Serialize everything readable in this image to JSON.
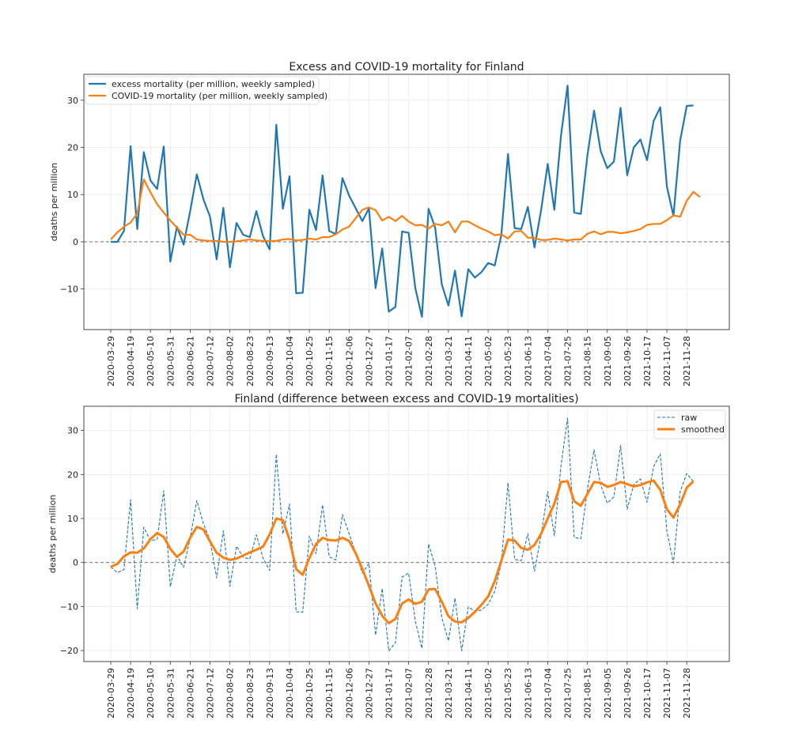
{
  "chart_data": [
    {
      "type": "line",
      "title": "Excess and COVID-19 mortality for Finland",
      "xlabel": "",
      "ylabel": "deaths per million",
      "ylim": [
        -18.6,
        35.5
      ],
      "yticks": [
        -10,
        0,
        10,
        20,
        30
      ],
      "ytick_labels": [
        "−10",
        "0",
        "10",
        "20",
        "30"
      ],
      "grid": true,
      "legend_position": "top-left",
      "reference_line": 0,
      "x_start": "2020-03-29",
      "x_step_weeks": 1,
      "xtick_every": 3,
      "xtick_labels": [
        "2020-03-29",
        "2020-04-19",
        "2020-05-10",
        "2020-05-31",
        "2020-06-21",
        "2020-07-12",
        "2020-08-02",
        "2020-08-23",
        "2020-09-13",
        "2020-10-04",
        "2020-10-25",
        "2020-11-15",
        "2020-12-06",
        "2020-12-27",
        "2021-01-17",
        "2021-02-07",
        "2021-02-28",
        "2021-03-21",
        "2021-04-11",
        "2021-05-02",
        "2021-05-23",
        "2021-06-13",
        "2021-07-04",
        "2021-07-25",
        "2021-08-15",
        "2021-09-05",
        "2021-09-26",
        "2021-10-17",
        "2021-11-07",
        "2021-11-28"
      ],
      "series": [
        {
          "name": "excess mortality (per million, weekly sampled)",
          "color": "#1f77b4",
          "style": "solid",
          "values": [
            0,
            0,
            2.3,
            20.3,
            2.7,
            19,
            13,
            11.2,
            20.2,
            -4.2,
            3.2,
            -0.6,
            6.5,
            14.3,
            9,
            5.3,
            -3.7,
            7.2,
            -5.4,
            4,
            1.5,
            1,
            6.5,
            1.2,
            -1.6,
            24.8,
            7,
            13.9,
            -10.9,
            -10.8,
            6.8,
            2.5,
            14.1,
            2.3,
            1.6,
            13.5,
            9.8,
            7.1,
            4.4,
            7.1,
            -9.8,
            -1.4,
            -14.8,
            -13.8,
            2.2,
            1.9,
            -9.8,
            -15.9,
            7,
            3,
            -9,
            -13.5,
            -6.1,
            -15.8,
            -5.8,
            -7.6,
            -6.4,
            -4.5,
            -5,
            1.5,
            18.6,
            2.9,
            2.7,
            7.4,
            -1.2,
            6.6,
            16.5,
            6.8,
            22.5,
            33.1,
            6.2,
            5.9,
            18.3,
            27.8,
            19.2,
            15.6,
            17,
            28.4,
            14.1,
            20,
            21.7,
            17.3,
            25.6,
            28.5,
            11.7,
            5.5,
            21.4,
            28.8,
            28.9
          ]
        },
        {
          "name": "COVID-19 mortality (per million, weekly sampled)",
          "color": "#ff7f0e",
          "style": "solid",
          "values": [
            0.5,
            2,
            3.2,
            4.1,
            6,
            13.2,
            10.5,
            8,
            6.2,
            4.5,
            3,
            1.5,
            1.5,
            0.5,
            0.3,
            0.2,
            0.2,
            0,
            0,
            0.1,
            0.3,
            0.5,
            0.3,
            0.2,
            0.2,
            0.2,
            0.5,
            0.6,
            0.3,
            0.4,
            0.7,
            0.5,
            1,
            1,
            1.6,
            2.6,
            3.2,
            5,
            6.8,
            7.3,
            6.7,
            4.5,
            5.3,
            4.4,
            5.5,
            4.3,
            3.5,
            3.6,
            2.8,
            3.8,
            3.5,
            4.3,
            2,
            4.3,
            4.3,
            3.5,
            2.8,
            2.2,
            1.4,
            1.6,
            0.7,
            2.2,
            2.3,
            0.9,
            0.8,
            0.4,
            0.4,
            0.7,
            0.5,
            0.3,
            0.5,
            0.5,
            1.7,
            2.2,
            1.6,
            2.1,
            2.1,
            1.8,
            2,
            2.3,
            2.7,
            3.6,
            3.8,
            3.8,
            4.6,
            5.6,
            5.3,
            8.7,
            10.6,
            9.5
          ]
        }
      ]
    },
    {
      "type": "line",
      "title": "Finland (difference between excess and COVID-19 mortalities)",
      "xlabel": "",
      "ylabel": "deaths per million",
      "ylim": [
        -22.5,
        35.5
      ],
      "yticks": [
        -20,
        -10,
        0,
        10,
        20,
        30
      ],
      "ytick_labels": [
        "−20",
        "−10",
        "0",
        "10",
        "20",
        "30"
      ],
      "grid": true,
      "legend_position": "top-right",
      "reference_line": 0,
      "x_start": "2020-03-29",
      "x_step_weeks": 1,
      "xtick_every": 3,
      "xtick_labels": [
        "2020-03-29",
        "2020-04-19",
        "2020-05-10",
        "2020-05-31",
        "2020-06-21",
        "2020-07-12",
        "2020-08-02",
        "2020-08-23",
        "2020-09-13",
        "2020-10-04",
        "2020-10-25",
        "2020-11-15",
        "2020-12-06",
        "2020-12-27",
        "2021-01-17",
        "2021-02-07",
        "2021-02-28",
        "2021-03-21",
        "2021-04-11",
        "2021-05-02",
        "2021-05-23",
        "2021-06-13",
        "2021-07-04",
        "2021-07-25",
        "2021-08-15",
        "2021-09-05",
        "2021-09-26",
        "2021-10-17",
        "2021-11-07",
        "2021-11-28"
      ],
      "series": [
        {
          "name": "raw",
          "color": "#1f77b4",
          "style": "dashed",
          "values": [
            -1,
            -2.3,
            -1.6,
            14.3,
            -10.5,
            8,
            5,
            5.2,
            16.3,
            -5.5,
            1.5,
            -1.1,
            5.5,
            14.1,
            8.8,
            5.1,
            -3.5,
            7.2,
            -5.4,
            3.7,
            1.2,
            0.8,
            6.3,
            1,
            -1.8,
            24.6,
            6.5,
            13.3,
            -11.2,
            -11.3,
            6,
            2,
            13.1,
            1.3,
            0.6,
            10.9,
            6.6,
            2.1,
            -2.4,
            -0.2,
            -16.5,
            -5.9,
            -20.1,
            -18.2,
            -3.3,
            -2.4,
            -13.3,
            -19.5,
            4.2,
            -0.8,
            -12.5,
            -17.8,
            -8.1,
            -20.1,
            -10.1,
            -11.1,
            -10.8,
            -9.5,
            -6.5,
            -0.1,
            18.1,
            0.7,
            0.4,
            6.5,
            -2,
            6.2,
            16.1,
            6.1,
            22,
            32.8,
            5.7,
            5.4,
            16.6,
            25.6,
            17.6,
            13.5,
            14.9,
            26.6,
            12.1,
            17.7,
            19,
            13.7,
            21.8,
            24.7,
            7.1,
            -0.1,
            16.1,
            20.2,
            18.4
          ]
        },
        {
          "name": "smoothed",
          "color": "#ff7f0e",
          "style": "solid",
          "values": [
            -1,
            -0.3,
            1.4,
            2.3,
            2.2,
            3.2,
            5.3,
            6.7,
            5.8,
            3.1,
            1.3,
            2.5,
            5.6,
            8.1,
            7.5,
            4.8,
            2.2,
            1.1,
            0.6,
            0.9,
            1.6,
            2.3,
            2.9,
            3.6,
            6.4,
            10,
            9.6,
            5.2,
            -1.5,
            -2.8,
            1,
            4.2,
            5.6,
            5.1,
            5,
            5.6,
            4.9,
            2.1,
            -1.5,
            -5.3,
            -9.3,
            -12.1,
            -13.8,
            -12.8,
            -9.3,
            -8.4,
            -9.4,
            -8.9,
            -6.1,
            -6,
            -8.9,
            -12.2,
            -13.4,
            -13.6,
            -12.6,
            -11.2,
            -9.6,
            -7.7,
            -4.2,
            0.4,
            5.2,
            5,
            3.3,
            2.9,
            4,
            6.5,
            10,
            13.4,
            18.3,
            18.5,
            13.9,
            12.9,
            15.6,
            18.3,
            18.1,
            17.2,
            17.6,
            18.3,
            17.8,
            17.3,
            17.6,
            18.2,
            18.6,
            16.5,
            12.1,
            10.2,
            13.2,
            17,
            18.5
          ]
        }
      ]
    }
  ]
}
